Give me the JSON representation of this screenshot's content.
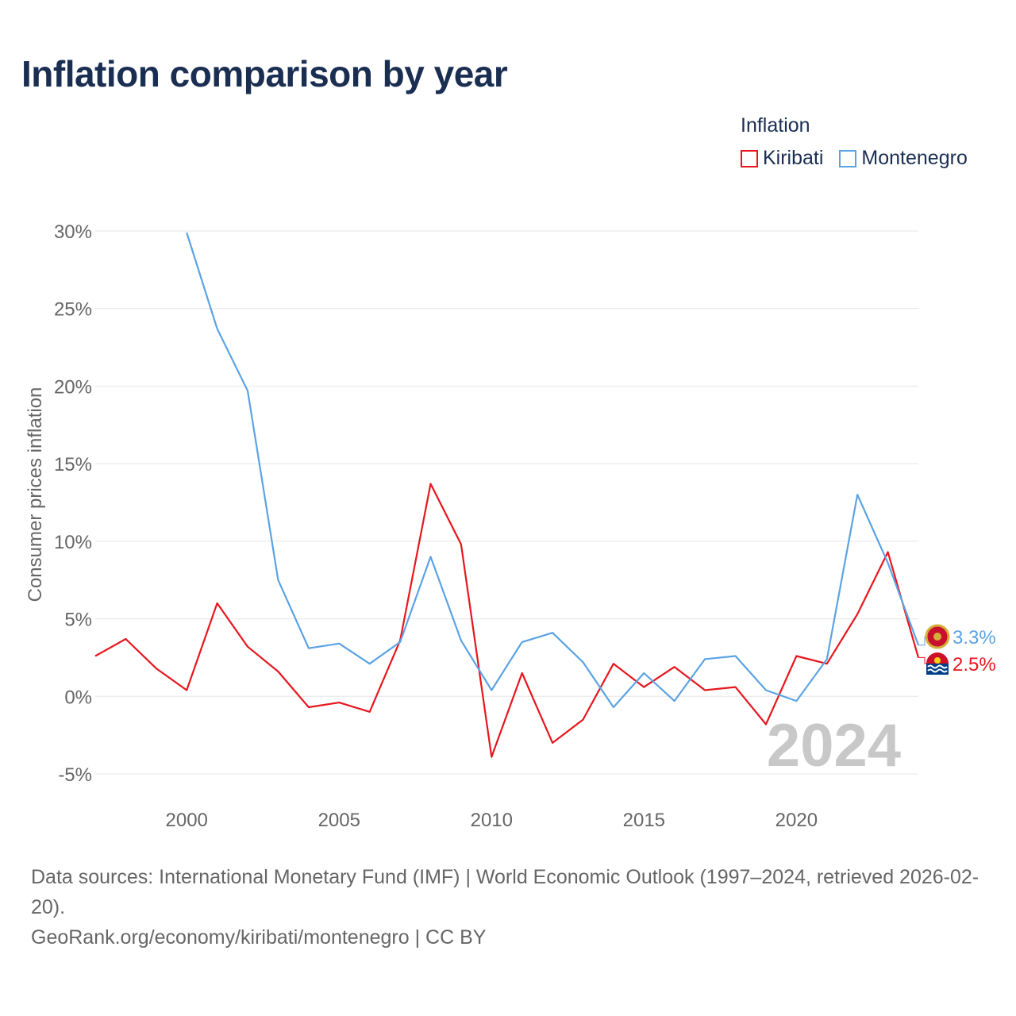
{
  "title": "Inflation comparison by year",
  "legend": {
    "title": "Inflation",
    "items": [
      {
        "label": "Kiribati",
        "color": "#e8151d"
      },
      {
        "label": "Montenegro",
        "color": "#5ba3e3"
      }
    ]
  },
  "chart_data": {
    "type": "line",
    "ylabel": "Consumer prices inflation",
    "xlabel": "",
    "ylim": [
      -5,
      30
    ],
    "xlim": [
      1997,
      2024
    ],
    "yticks": [
      -5,
      0,
      5,
      10,
      15,
      20,
      25,
      30
    ],
    "ytick_labels": [
      "-5%",
      "0%",
      "5%",
      "10%",
      "15%",
      "20%",
      "25%",
      "30%"
    ],
    "xticks": [
      2000,
      2005,
      2010,
      2015,
      2020
    ],
    "xtick_labels": [
      "2000",
      "2005",
      "2010",
      "2015",
      "2020"
    ],
    "year_watermark": "2024",
    "series": [
      {
        "name": "Kiribati",
        "color": "#e8151d",
        "x": [
          1997,
          1998,
          1999,
          2000,
          2001,
          2002,
          2003,
          2004,
          2005,
          2006,
          2007,
          2008,
          2009,
          2010,
          2011,
          2012,
          2013,
          2014,
          2015,
          2016,
          2017,
          2018,
          2019,
          2020,
          2021,
          2022,
          2023,
          2024
        ],
        "values": [
          2.6,
          3.7,
          1.8,
          0.4,
          6.0,
          3.2,
          1.6,
          -0.7,
          -0.4,
          -1.0,
          3.6,
          13.7,
          9.8,
          -3.9,
          1.5,
          -3.0,
          -1.5,
          2.1,
          0.6,
          1.9,
          0.4,
          0.6,
          -1.8,
          2.6,
          2.1,
          5.3,
          9.3,
          2.5
        ],
        "end_label": "2.5%"
      },
      {
        "name": "Montenegro",
        "color": "#5ba3e3",
        "x": [
          2000,
          2001,
          2002,
          2003,
          2004,
          2005,
          2006,
          2007,
          2008,
          2009,
          2010,
          2011,
          2012,
          2013,
          2014,
          2015,
          2016,
          2017,
          2018,
          2019,
          2020,
          2021,
          2022,
          2023,
          2024
        ],
        "values": [
          29.9,
          23.7,
          19.7,
          7.5,
          3.1,
          3.4,
          2.1,
          3.5,
          9.0,
          3.6,
          0.4,
          3.5,
          4.1,
          2.2,
          -0.7,
          1.5,
          -0.3,
          2.4,
          2.6,
          0.4,
          -0.3,
          2.4,
          13.0,
          8.6,
          3.3
        ],
        "end_label": "3.3%"
      }
    ]
  },
  "footer": {
    "line1": "Data sources: International Monetary Fund (IMF) | World Economic Outlook (1997–2024, retrieved 2026-02-20).",
    "line2": "GeoRank.org/economy/kiribati/montenegro | CC BY"
  }
}
